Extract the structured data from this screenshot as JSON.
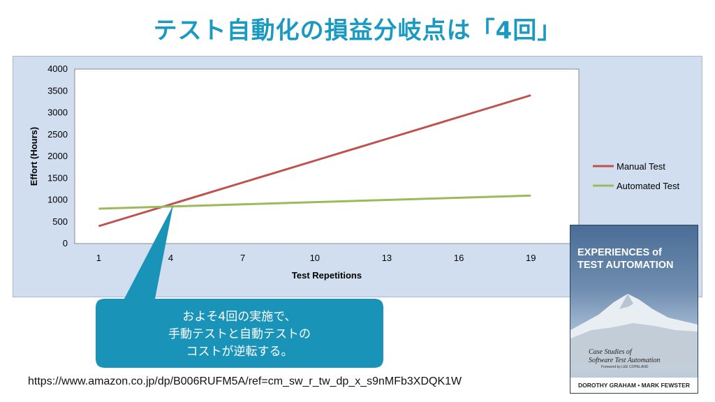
{
  "slide": {
    "title": "テスト自動化の損益分岐点は「4回」",
    "callout_lines": [
      "およそ4回の実施で、",
      "手動テストと自動テストの",
      "コストが逆転する。"
    ],
    "source_url": "https://www.amazon.co.jp/dp/B006RUFM5A/ref=cm_sw_r_tw_dp_x_s9nMFb3XDQK1W"
  },
  "book": {
    "title_line1": "EXPERIENCES of",
    "title_line2": "TEST AUTOMATION",
    "subtitle_line1": "Case Studies of",
    "subtitle_line2": "Software Test Automation",
    "forward": "Foreword by LEE COPELAND",
    "authors": "DOROTHY GRAHAM • MARK FEWSTER"
  },
  "colors": {
    "manual": "#c0504d",
    "automated": "#9bbb59",
    "title": "#1a9ac0",
    "callout": "#1a93b8"
  },
  "chart_data": {
    "type": "line",
    "x": [
      1,
      4,
      7,
      10,
      13,
      16,
      19
    ],
    "xticks": [
      "1",
      "4",
      "7",
      "10",
      "13",
      "16",
      "19"
    ],
    "xlabel": "Test Repetitions",
    "ylabel": "Effort (Hours)",
    "ylim": [
      0,
      4000
    ],
    "yticks": [
      "0",
      "500",
      "1000",
      "1500",
      "2000",
      "2500",
      "3000",
      "3500",
      "4000"
    ],
    "grid": false,
    "legend_position": "right",
    "series": [
      {
        "name": "Manual Test",
        "values": [
          400,
          900,
          1400,
          1900,
          2400,
          2900,
          3400
        ]
      },
      {
        "name": "Automated Test",
        "values": [
          800,
          850,
          900,
          950,
          1000,
          1050,
          1100
        ]
      }
    ]
  }
}
